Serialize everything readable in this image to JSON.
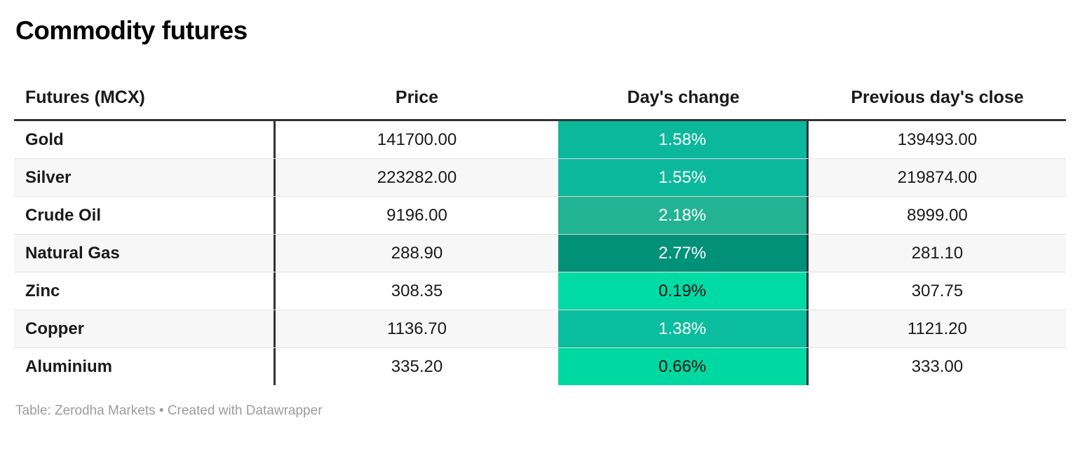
{
  "title": "Commodity futures",
  "table": {
    "columns": [
      {
        "label": "Futures (MCX)",
        "align": "left"
      },
      {
        "label": "Price",
        "align": "center"
      },
      {
        "label": "Day's change",
        "align": "center"
      },
      {
        "label": "Previous day's close",
        "align": "center"
      }
    ],
    "rows": [
      {
        "name": "Gold",
        "price": "141700.00",
        "change": "1.58%",
        "change_bg": "#0cb89c",
        "change_text": "#ffffff",
        "prev_close": "139493.00"
      },
      {
        "name": "Silver",
        "price": "223282.00",
        "change": "1.55%",
        "change_bg": "#0db99d",
        "change_text": "#ffffff",
        "prev_close": "219874.00"
      },
      {
        "name": "Crude Oil",
        "price": "9196.00",
        "change": "2.18%",
        "change_bg": "#22b392",
        "change_text": "#ffffff",
        "prev_close": "8999.00"
      },
      {
        "name": "Natural Gas",
        "price": "288.90",
        "change": "2.77%",
        "change_bg": "#019178",
        "change_text": "#ffffff",
        "prev_close": "281.10"
      },
      {
        "name": "Zinc",
        "price": "308.35",
        "change": "0.19%",
        "change_bg": "#00dba5",
        "change_text": "#111111",
        "prev_close": "307.75"
      },
      {
        "name": "Copper",
        "price": "1136.70",
        "change": "1.38%",
        "change_bg": "#0bbd9f",
        "change_text": "#ffffff",
        "prev_close": "1121.20"
      },
      {
        "name": "Aluminium",
        "price": "335.20",
        "change": "0.66%",
        "change_bg": "#00d8a1",
        "change_text": "#111111",
        "prev_close": "333.00"
      }
    ]
  },
  "footer": {
    "text": "Table: Zerodha Markets • Created with Datawrapper"
  },
  "colors": {
    "divider": "#333333",
    "header_rule": "#333333",
    "row_alt_bg": "#f7f7f7",
    "row_separator": "#e3e3e3",
    "footer_text": "#9c9c9c"
  },
  "chart_data": {
    "type": "table",
    "title": "Commodity futures",
    "columns": [
      "Futures (MCX)",
      "Price",
      "Day's change",
      "Previous day's close"
    ],
    "rows": [
      [
        "Gold",
        141700.0,
        "1.58%",
        139493.0
      ],
      [
        "Silver",
        223282.0,
        "1.55%",
        219874.0
      ],
      [
        "Crude Oil",
        9196.0,
        "2.18%",
        8999.0
      ],
      [
        "Natural Gas",
        288.9,
        "2.77%",
        281.1
      ],
      [
        "Zinc",
        308.35,
        "0.19%",
        307.75
      ],
      [
        "Copper",
        1136.7,
        "1.38%",
        1121.2
      ],
      [
        "Aluminium",
        335.2,
        "0.66%",
        333.0
      ]
    ],
    "heatmap_column": "Day's change",
    "heatmap_scale": "green (light = low % change, dark = high % change)",
    "footer": "Table: Zerodha Markets • Created with Datawrapper"
  }
}
